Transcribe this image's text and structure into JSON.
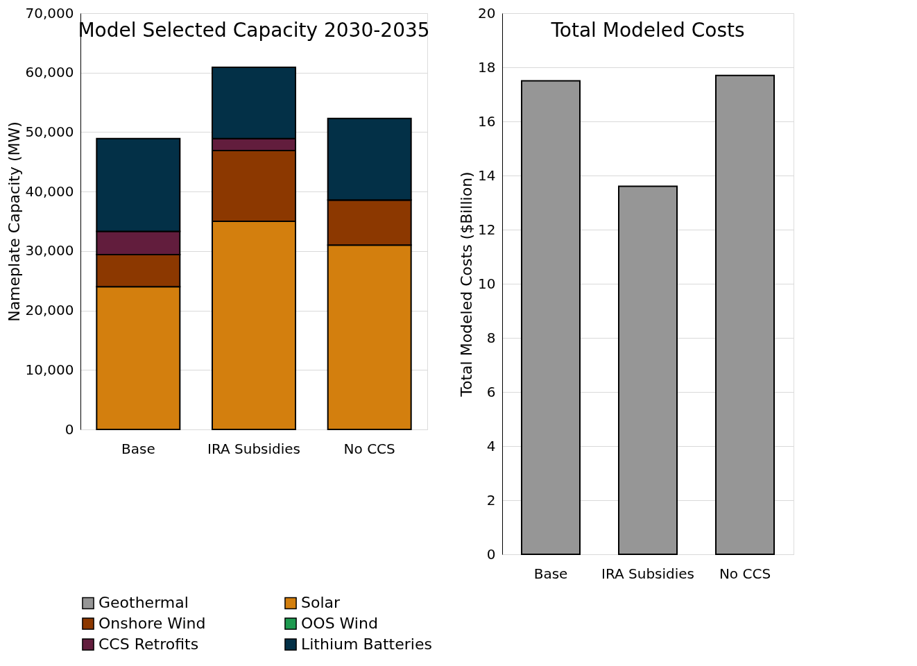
{
  "chart_data": [
    {
      "type": "bar",
      "title": "Model Selected Capacity 2030-2035",
      "ylabel": "Nameplate Capacity (MW)",
      "categories": [
        "Base",
        "IRA Subsidies",
        "No CCS"
      ],
      "stacked": true,
      "series": [
        {
          "name": "Geothermal",
          "color": "#969696",
          "values": [
            0,
            0,
            0
          ]
        },
        {
          "name": "Solar",
          "color": "#d37f0e",
          "values": [
            24000,
            35000,
            31000
          ]
        },
        {
          "name": "Onshore Wind",
          "color": "#8c3800",
          "values": [
            5400,
            11900,
            7600
          ]
        },
        {
          "name": "OOS Wind",
          "color": "#1e9a50",
          "values": [
            0,
            0,
            0
          ]
        },
        {
          "name": "CCS Retrofits",
          "color": "#621d3d",
          "values": [
            3900,
            2000,
            0
          ]
        },
        {
          "name": "Lithium Batteries",
          "color": "#033047",
          "values": [
            15600,
            12000,
            13700
          ]
        }
      ],
      "ylim": [
        0,
        70000
      ],
      "yticks": [
        {
          "value": 0,
          "label": "0"
        },
        {
          "value": 10000,
          "label": "10,000"
        },
        {
          "value": 20000,
          "label": "20,000"
        },
        {
          "value": 30000,
          "label": "30,000"
        },
        {
          "value": 40000,
          "label": "40,000"
        },
        {
          "value": 50000,
          "label": "50,000"
        },
        {
          "value": 60000,
          "label": "60,000"
        },
        {
          "value": 70000,
          "label": "70,000"
        }
      ],
      "grid": "y",
      "legend": "bottom"
    },
    {
      "type": "bar",
      "title": "Total Modeled Costs",
      "ylabel": "Total Modeled Costs ($Billion)",
      "categories": [
        "Base",
        "IRA Subsidies",
        "No CCS"
      ],
      "values": [
        17.5,
        13.6,
        17.7
      ],
      "color": "#969696",
      "ylim": [
        0,
        20
      ],
      "yticks": [
        0,
        2,
        4,
        6,
        8,
        10,
        12,
        14,
        16,
        18,
        20
      ],
      "grid": "y"
    }
  ]
}
